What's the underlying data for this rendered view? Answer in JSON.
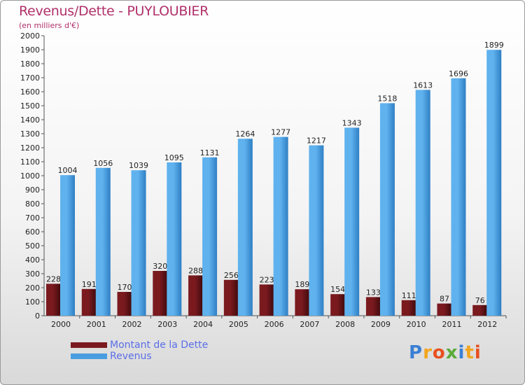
{
  "chart_data": {
    "type": "bar",
    "title": "Revenus/Dette - PUYLOUBIER",
    "subtitle": "(en milliers d'€)",
    "categories": [
      "2000",
      "2001",
      "2002",
      "2003",
      "2004",
      "2005",
      "2006",
      "2007",
      "2008",
      "2009",
      "2010",
      "2011",
      "2012"
    ],
    "series": [
      {
        "name": "Montant de la Dette",
        "color": "#7a1a1f",
        "values": [
          228,
          191,
          170,
          320,
          288,
          256,
          223,
          189,
          154,
          133,
          111,
          87,
          76
        ]
      },
      {
        "name": "Revenus",
        "color": "#4a9ee0",
        "values": [
          1004,
          1056,
          1039,
          1095,
          1131,
          1264,
          1277,
          1217,
          1343,
          1518,
          1613,
          1696,
          1899
        ]
      }
    ],
    "ylim": [
      0,
      2000
    ],
    "ytick_step": 100,
    "grid": false,
    "xlabel": "",
    "ylabel": "",
    "legend_position": "bottom-left"
  },
  "logo": {
    "text": "Proxiti",
    "letters": [
      "P",
      "r",
      "o",
      "x",
      "i",
      "t",
      "i"
    ],
    "colors": [
      "#3b7fd4",
      "#f2a51f",
      "#e8501f",
      "#5bab3a",
      "#3b7fd4",
      "#f2a51f",
      "#e8501f"
    ]
  }
}
